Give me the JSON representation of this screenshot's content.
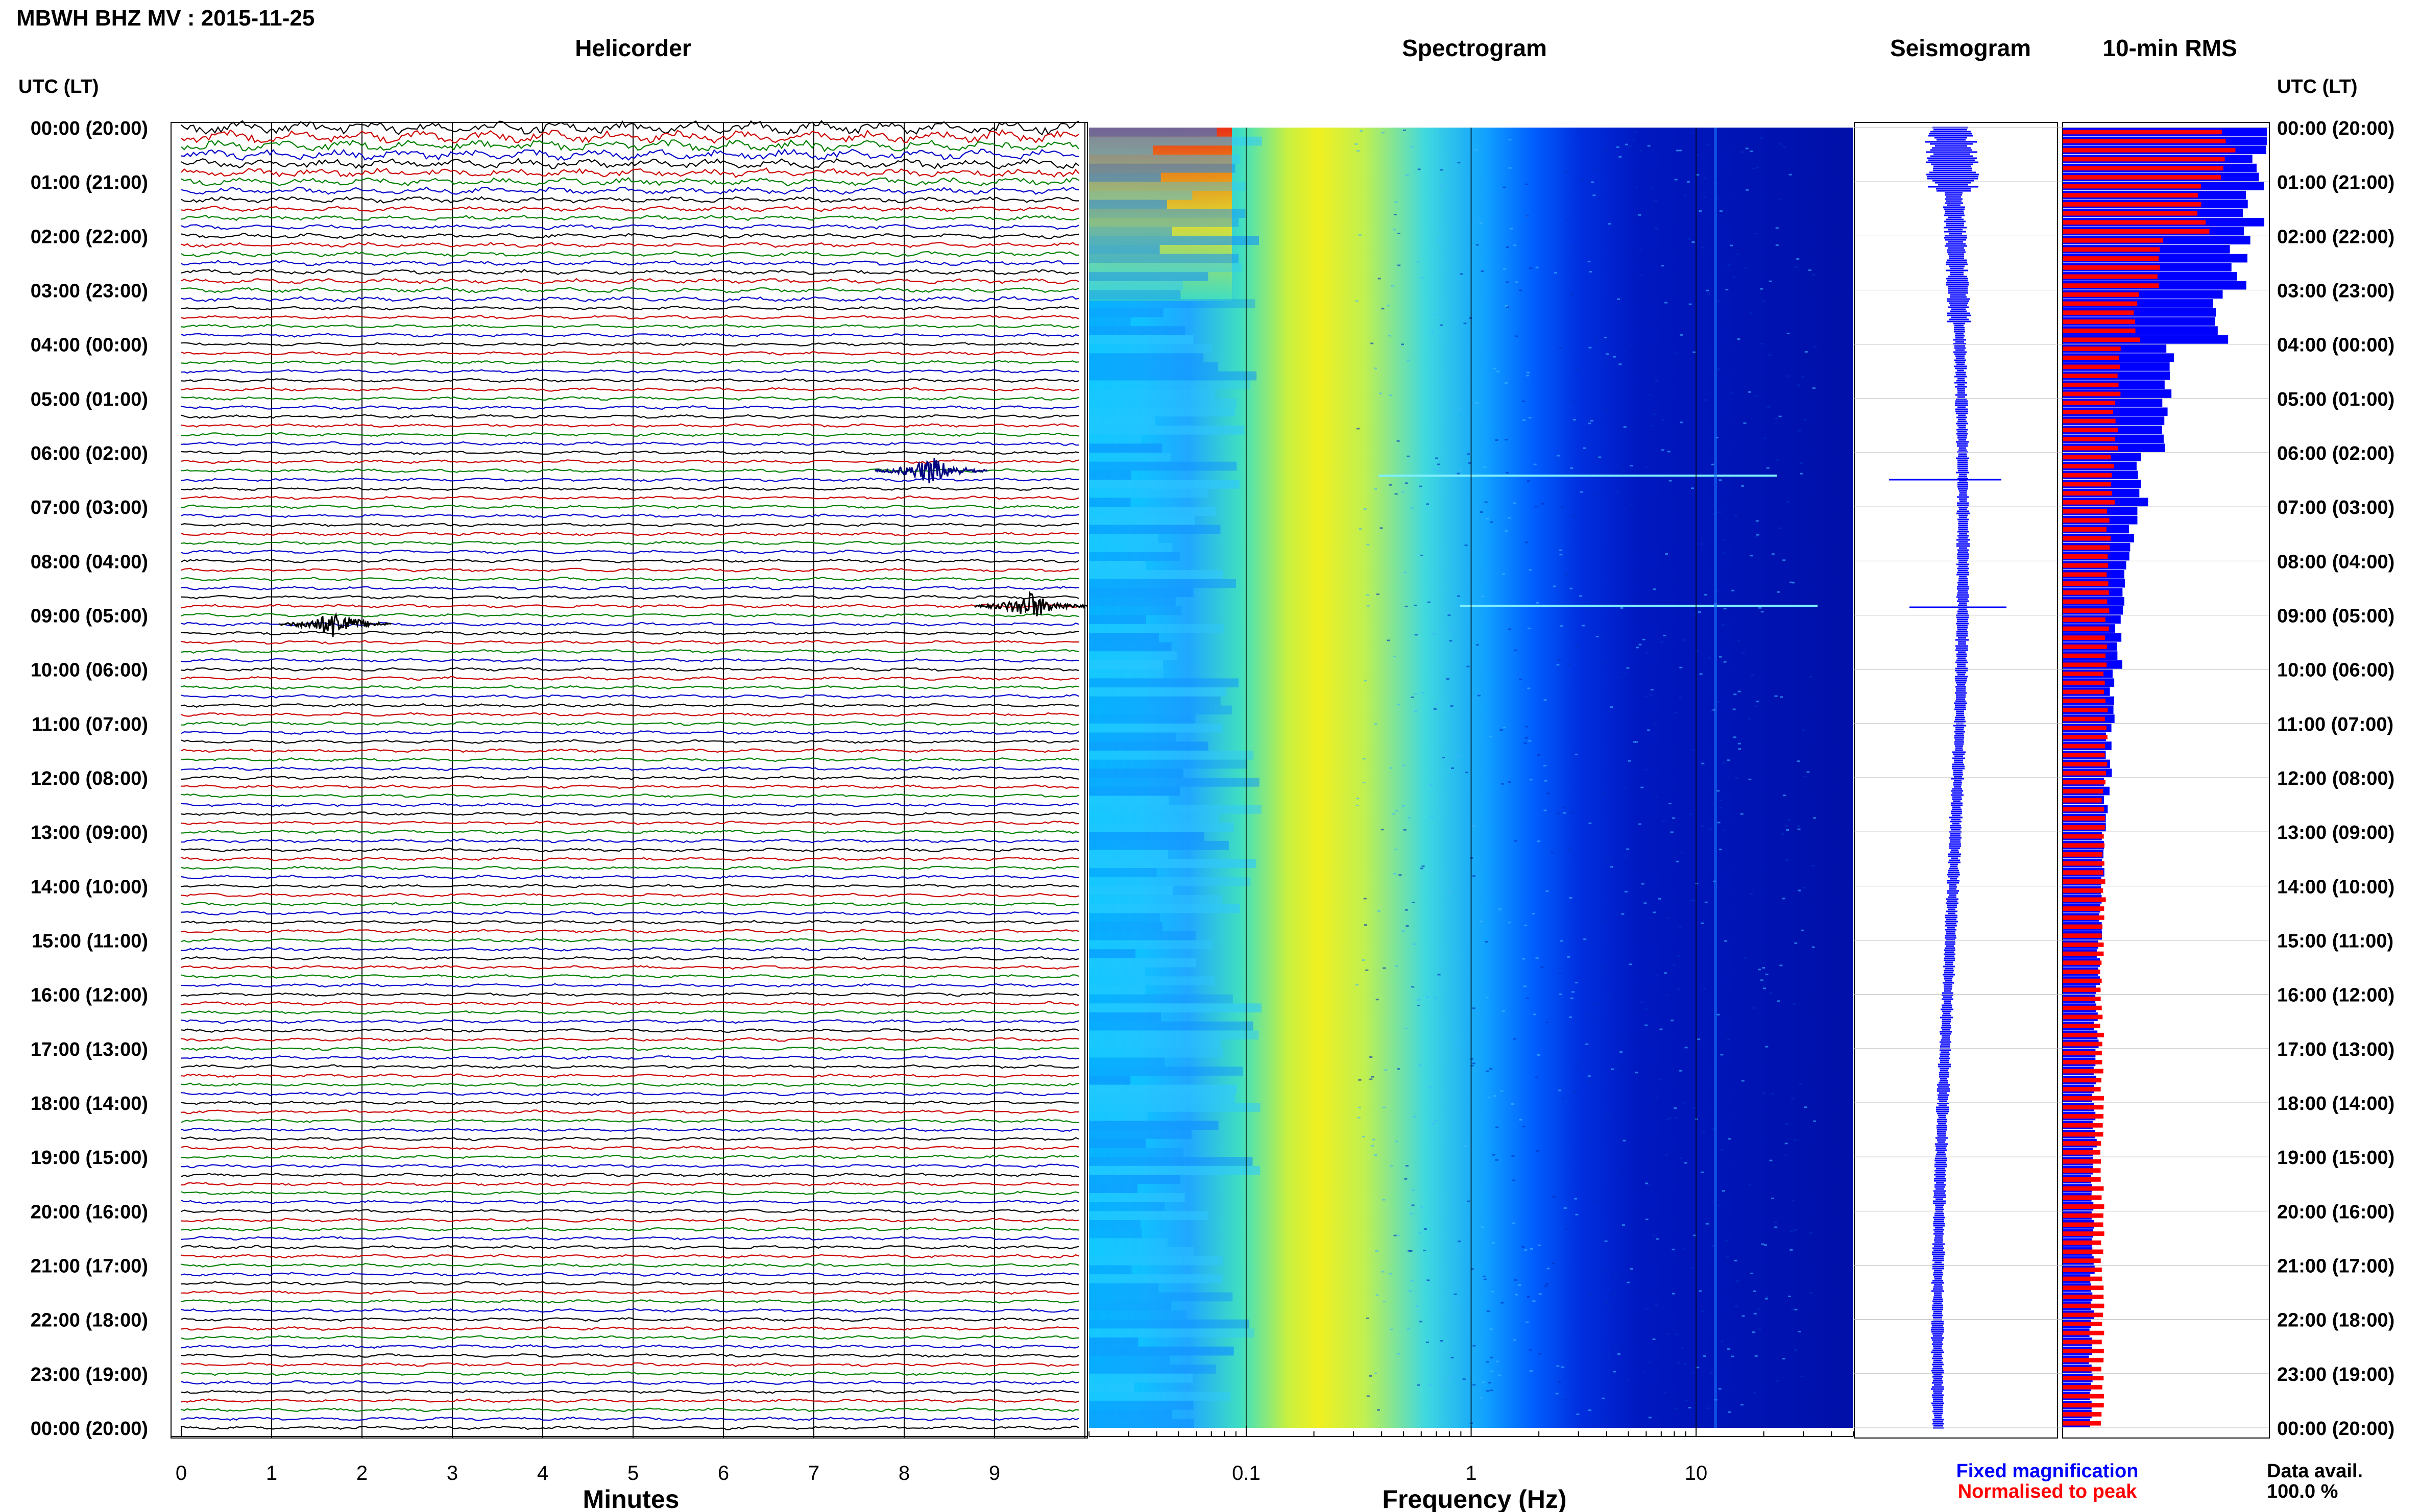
{
  "header": {
    "title": "MBWH BHZ MV : 2015-11-25",
    "utc_label_left": "UTC (LT)",
    "utc_label_right": "UTC (LT)"
  },
  "panels": {
    "helicorder": "Helicorder",
    "spectrogram": "Spectrogram",
    "seismogram": "Seismogram",
    "rms": "10-min RMS"
  },
  "axes": {
    "minutes_label": "Minutes",
    "frequency_label": "Frequency (Hz)",
    "minute_ticks": [
      "0",
      "1",
      "2",
      "3",
      "4",
      "5",
      "6",
      "7",
      "8",
      "9"
    ],
    "freq_ticks": [
      "0.1",
      "1",
      "10"
    ]
  },
  "time_labels": [
    "00:00 (20:00)",
    "01:00 (21:00)",
    "02:00 (22:00)",
    "03:00 (23:00)",
    "04:00 (00:00)",
    "05:00 (01:00)",
    "06:00 (02:00)",
    "07:00 (03:00)",
    "08:00 (04:00)",
    "09:00 (05:00)",
    "10:00 (06:00)",
    "11:00 (07:00)",
    "12:00 (08:00)",
    "13:00 (09:00)",
    "14:00 (10:00)",
    "15:00 (11:00)",
    "16:00 (12:00)",
    "17:00 (13:00)",
    "18:00 (14:00)",
    "19:00 (15:00)",
    "20:00 (16:00)",
    "21:00 (17:00)",
    "22:00 (18:00)",
    "23:00 (19:00)",
    "00:00 (20:00)"
  ],
  "legend": {
    "fixed": "Fixed magnification",
    "normalised": "Normalised to peak",
    "fixed_color": "#0000ff",
    "normalised_color": "#ff0000"
  },
  "data_avail": {
    "label": "Data avail.",
    "value": "100.0 %"
  },
  "colors": {
    "trace_cycle": [
      "#000000",
      "#cc0000",
      "#008000",
      "#0000cc"
    ]
  },
  "chart_data": {
    "type": "heatmap",
    "hours": 24,
    "lines_per_hour": 6,
    "minutes_per_line": 10,
    "xlim_minutes": [
      0,
      10
    ],
    "xlim_frequency_hz": [
      0.02,
      50
    ],
    "frequency_scale": "log",
    "events": [
      {
        "time_utc": "06:20",
        "minute": 8.3,
        "color": "#000080"
      },
      {
        "time_utc": "08:50",
        "minute": 9.4,
        "color": "#000000"
      },
      {
        "time_utc": "09:10",
        "minute": 1.7,
        "color": "#000000"
      }
    ],
    "rms_fixed_relative": [
      1.0,
      0.95,
      0.9,
      0.8,
      0.55,
      0.5,
      0.4,
      0.35,
      0.3,
      0.28,
      0.25,
      0.23,
      0.22,
      0.2,
      0.19,
      0.18,
      0.17,
      0.16,
      0.16,
      0.15,
      0.15,
      0.15,
      0.14,
      0.14
    ],
    "rms_normalised_relative": [
      1.0,
      0.85,
      0.6,
      0.45,
      0.35,
      0.32,
      0.3,
      0.28,
      0.27,
      0.27,
      0.26,
      0.26,
      0.25,
      0.25,
      0.25,
      0.24,
      0.24,
      0.24,
      0.24,
      0.24,
      0.24,
      0.24,
      0.24,
      0.24
    ]
  }
}
